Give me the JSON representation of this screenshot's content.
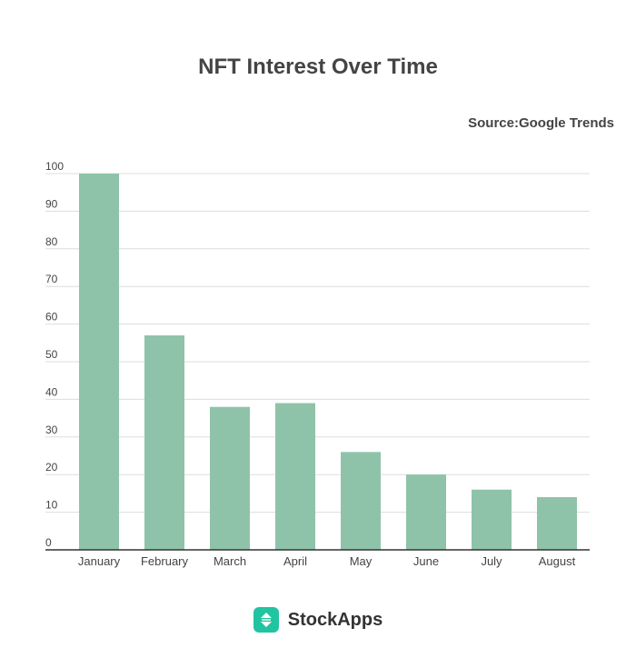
{
  "chart_data": {
    "type": "bar",
    "title": "NFT Interest Over Time",
    "source": "Source:Google Trends",
    "categories": [
      "January",
      "February",
      "March",
      "April",
      "May",
      "June",
      "July",
      "August"
    ],
    "values": [
      100,
      57,
      38,
      39,
      26,
      20,
      16,
      14
    ],
    "ylim": [
      0,
      100
    ],
    "yticks": [
      0,
      10,
      20,
      30,
      40,
      50,
      60,
      70,
      80,
      90,
      100
    ],
    "grid": true,
    "xlabel": "",
    "ylabel": "",
    "bar_color": "#8fc3a9",
    "gridline_color": "#dddddd",
    "axis_color": "#333333"
  },
  "brand": {
    "name": "StockApps",
    "logo_color": "#21c4a0",
    "logo_icon": "up-down-arrows-icon"
  }
}
